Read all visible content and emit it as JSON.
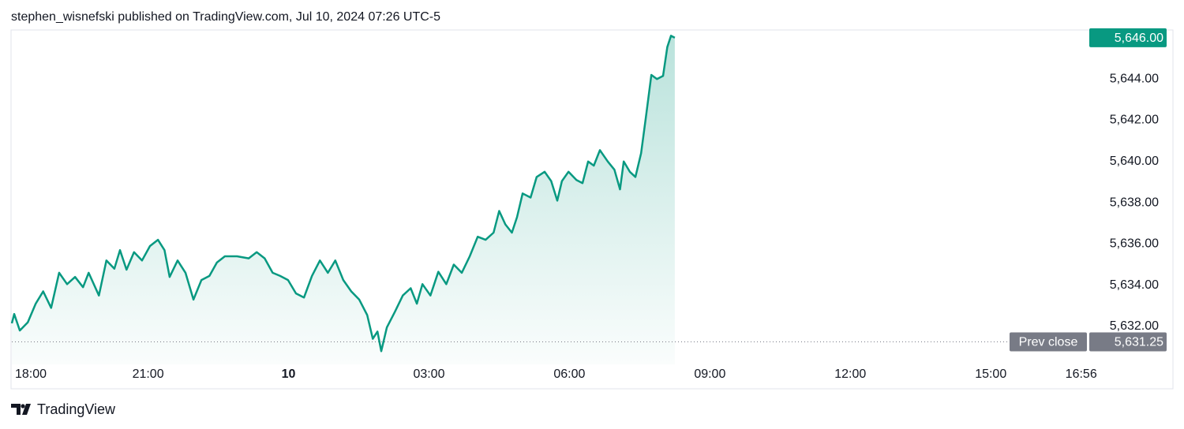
{
  "header": "stephen_wisnefski published on TradingView.com, Jul 10, 2024 07:26 UTC-5",
  "footer": "TradingView",
  "chart_data": {
    "type": "area",
    "x": [
      18.09,
      18.14,
      18.26,
      18.43,
      18.6,
      18.76,
      18.93,
      19.1,
      19.27,
      19.44,
      19.61,
      19.73,
      19.95,
      20.11,
      20.28,
      20.4,
      20.54,
      20.7,
      20.87,
      21.04,
      21.21,
      21.35,
      21.46,
      21.63,
      21.8,
      21.97,
      22.14,
      22.31,
      22.47,
      22.64,
      22.9,
      23.15,
      23.32,
      23.49,
      23.66,
      23.82,
      23.99,
      24.16,
      24.33,
      24.5,
      24.67,
      24.84,
      25.0,
      25.17,
      25.34,
      25.51,
      25.68,
      25.8,
      25.9,
      25.98,
      26.1,
      26.27,
      26.44,
      26.61,
      26.74,
      26.86,
      27.03,
      27.2,
      27.37,
      27.53,
      27.7,
      27.87,
      28.04,
      28.21,
      28.38,
      28.5,
      28.63,
      28.77,
      28.88,
      29.0,
      29.17,
      29.3,
      29.47,
      29.61,
      29.74,
      29.84,
      29.98,
      30.15,
      30.28,
      30.4,
      30.52,
      30.65,
      30.82,
      30.96,
      31.08,
      31.16,
      31.29,
      31.41,
      31.53,
      31.63,
      31.75,
      31.87,
      32.0,
      32.09,
      32.17,
      32.25
    ],
    "series": [
      {
        "color": "#089981",
        "values": [
          5632.15,
          5632.6,
          5631.8,
          5632.2,
          5633.1,
          5633.7,
          5632.9,
          5634.6,
          5634.05,
          5634.4,
          5633.9,
          5634.6,
          5633.5,
          5635.2,
          5634.8,
          5635.7,
          5634.75,
          5635.6,
          5635.2,
          5635.9,
          5636.2,
          5635.7,
          5634.4,
          5635.2,
          5634.6,
          5633.3,
          5634.25,
          5634.45,
          5635.1,
          5635.4,
          5635.4,
          5635.3,
          5635.6,
          5635.3,
          5634.6,
          5634.45,
          5634.25,
          5633.6,
          5633.4,
          5634.45,
          5635.2,
          5634.6,
          5635.2,
          5634.25,
          5633.7,
          5633.3,
          5632.55,
          5631.4,
          5631.75,
          5630.8,
          5631.95,
          5632.7,
          5633.5,
          5633.85,
          5633.1,
          5634.05,
          5633.5,
          5634.65,
          5634.05,
          5635.0,
          5634.6,
          5635.4,
          5636.35,
          5636.2,
          5636.55,
          5637.6,
          5636.95,
          5636.55,
          5637.3,
          5638.45,
          5638.25,
          5639.25,
          5639.5,
          5639.05,
          5638.1,
          5639.05,
          5639.5,
          5639.1,
          5638.95,
          5640.0,
          5639.8,
          5640.55,
          5640.0,
          5639.6,
          5638.65,
          5640.0,
          5639.5,
          5639.25,
          5640.4,
          5642.1,
          5644.2,
          5644.0,
          5644.15,
          5645.55,
          5646.1,
          5646.0
        ]
      }
    ],
    "last_price_label": "5,646.00",
    "prev_close": {
      "name": "Prev close",
      "value": 5631.25,
      "label": "5,631.25"
    },
    "xlim": [
      18.09,
      41.07
    ],
    "xticks": [
      {
        "value": 18,
        "label": "18:00"
      },
      {
        "value": 21,
        "label": "21:00"
      },
      {
        "value": 24,
        "label": "10"
      },
      {
        "value": 27,
        "label": "03:00"
      },
      {
        "value": 30,
        "label": "06:00"
      },
      {
        "value": 33,
        "label": "09:00"
      },
      {
        "value": 36,
        "label": "12:00"
      },
      {
        "value": 39,
        "label": "15:00"
      },
      {
        "value": 40.93,
        "label": "16:56"
      }
    ],
    "ylim": [
      5630.16,
      5646.38
    ],
    "yticks": [
      {
        "value": 5632,
        "label": "5,632.00"
      },
      {
        "value": 5634,
        "label": "5,634.00"
      },
      {
        "value": 5636,
        "label": "5,636.00"
      },
      {
        "value": 5638,
        "label": "5,638.00"
      },
      {
        "value": 5640,
        "label": "5,640.00"
      },
      {
        "value": 5642,
        "label": "5,642.00"
      },
      {
        "value": 5644,
        "label": "5,644.00"
      },
      {
        "value": 5646,
        "label": "5,646.00"
      }
    ]
  }
}
